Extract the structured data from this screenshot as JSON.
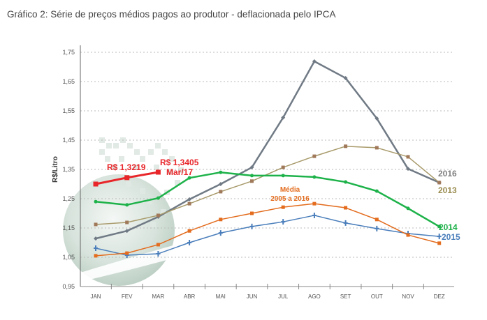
{
  "caption": "Gráfico 2: Série de preços médios pagos ao produtor - deflacionada pelo IPCA",
  "chart_data": {
    "type": "line",
    "title": "Gráfico 2: Série de preços médios pagos ao produtor - deflacionada pelo IPCA",
    "xlabel": "",
    "ylabel": "R$/Litro",
    "ylim": [
      0.95,
      1.75
    ],
    "yticks": [
      "0,95",
      "1,05",
      "1,15",
      "1,25",
      "1,35",
      "1,45",
      "1,55",
      "1,65",
      "1,75"
    ],
    "ytick_values": [
      0.95,
      1.05,
      1.15,
      1.25,
      1.35,
      1.45,
      1.55,
      1.65,
      1.75
    ],
    "grid": "horizontal dotted",
    "categories": [
      "JAN",
      "FEV",
      "MAR",
      "ABR",
      "MAI",
      "JUN",
      "JUL",
      "AGO",
      "SET",
      "OUT",
      "NOV",
      "DEZ"
    ],
    "series": [
      {
        "name": "2016",
        "color": "#707a85",
        "marker": "diamond",
        "label_color": "#7f7f7f",
        "values": [
          1.114,
          1.14,
          1.188,
          1.248,
          1.3,
          1.357,
          1.527,
          1.719,
          1.662,
          1.524,
          1.352,
          1.305
        ]
      },
      {
        "name": "2013",
        "color": "#a89a6a",
        "marker": "square",
        "marker_color": "#a0785a",
        "label_color": "#9a8c50",
        "values": [
          1.162,
          1.169,
          1.193,
          1.233,
          1.274,
          1.31,
          1.357,
          1.395,
          1.429,
          1.424,
          1.393,
          1.305
        ]
      },
      {
        "name": "2014",
        "color": "#1eb24a",
        "marker": "circle",
        "label_color": "#1eb24a",
        "values": [
          1.24,
          1.229,
          1.252,
          1.321,
          1.34,
          1.329,
          1.329,
          1.324,
          1.307,
          1.276,
          1.217,
          1.155
        ]
      },
      {
        "name": "2015",
        "color": "#4a7ebb",
        "marker": "cross",
        "label_color": "#4a7ebb",
        "values": [
          1.081,
          1.057,
          1.062,
          1.1,
          1.133,
          1.155,
          1.171,
          1.193,
          1.167,
          1.148,
          1.131,
          1.121
        ]
      },
      {
        "name": "Média 2005 a 2016",
        "color": "#e36c1e",
        "marker": "square",
        "values": [
          1.055,
          1.064,
          1.093,
          1.14,
          1.179,
          1.2,
          1.221,
          1.233,
          1.219,
          1.179,
          1.126,
          1.098
        ]
      },
      {
        "name": "2017",
        "color": "#e8262a",
        "marker": "square",
        "values": [
          1.3,
          1.3219,
          1.3405,
          null,
          null,
          null,
          null,
          null,
          null,
          null,
          null,
          null
        ]
      }
    ],
    "annotations": [
      {
        "text": "R$ 1,3219",
        "target": "2017 FEV"
      },
      {
        "text": "R$ 1,3405",
        "target": "2017 MAR"
      },
      {
        "text": "Mar/17",
        "target": "2017 MAR"
      },
      {
        "text": "Média",
        "target": "Média 2005 a 2016"
      },
      {
        "text": "2005 a 2016",
        "target": "Média 2005 a 2016"
      }
    ],
    "series_end_labels": [
      "2016",
      "2013",
      "2014",
      "2015"
    ]
  }
}
